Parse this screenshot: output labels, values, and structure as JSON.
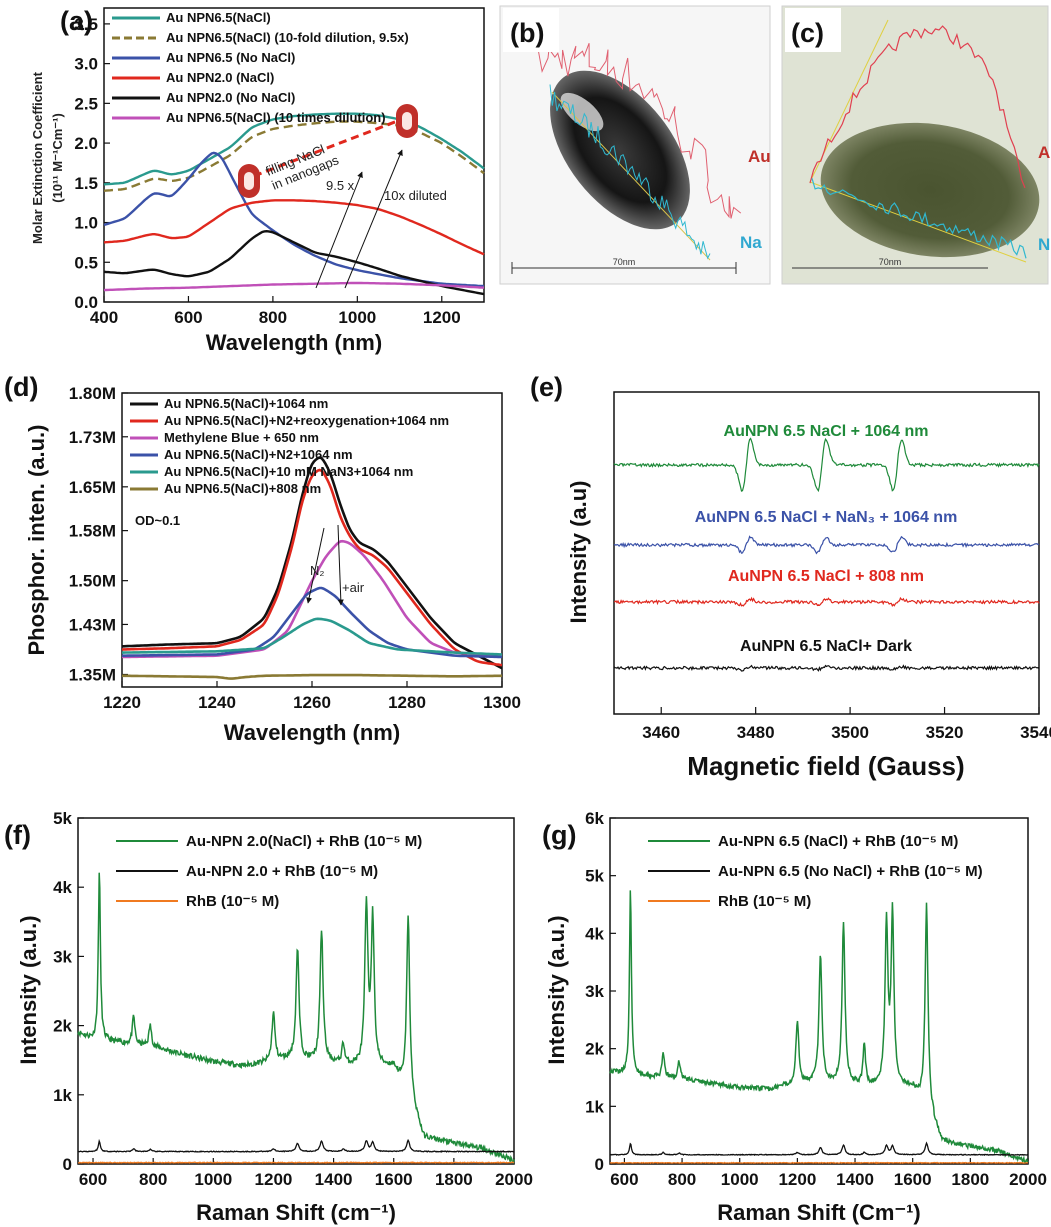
{
  "chart_data": [
    {
      "panel": "(a)",
      "type": "line",
      "xlabel": "Wavelength (nm)",
      "ylabel": "Molar Extinction Coefficient (10¹¹ M⁻¹Cm⁻¹)",
      "ylabel_line1": "Molar Extinction Coefficient",
      "ylabel_line2": "(10¹¹ M⁻¹Cm⁻¹)",
      "xlim": [
        400,
        1300
      ],
      "ylim": [
        0,
        3.7
      ],
      "xticks": [
        400,
        600,
        800,
        1000,
        1200
      ],
      "yticks": [
        0.0,
        0.5,
        1.0,
        1.5,
        2.0,
        2.5,
        3.0,
        3.5
      ],
      "ytick_labels": [
        "0.0",
        "0.5",
        "1.0",
        "1.5",
        "2.0",
        "2.5",
        "3.0",
        "3.5"
      ],
      "legend_position": "top-left",
      "annotations": [
        "filling NaCl",
        "in nanogaps",
        "9.5 x",
        "10x diluted"
      ],
      "series": [
        {
          "name": "Au NPN6.5(NaCl)",
          "color": "#2a9a8e",
          "dash": false,
          "x": [
            400,
            450,
            500,
            520,
            560,
            600,
            650,
            700,
            750,
            800,
            850,
            900,
            950,
            1000,
            1050,
            1100,
            1150,
            1200,
            1250,
            1300
          ],
          "y": [
            1.48,
            1.5,
            1.62,
            1.66,
            1.6,
            1.65,
            1.8,
            1.95,
            2.2,
            2.3,
            2.34,
            2.36,
            2.37,
            2.37,
            2.35,
            2.3,
            2.2,
            2.05,
            1.88,
            1.68
          ]
        },
        {
          "name": "Au NPN6.5(NaCl) (10-fold dilution, 9.5x)",
          "color": "#8a7a34",
          "dash": true,
          "x": [
            400,
            450,
            500,
            520,
            560,
            600,
            650,
            700,
            750,
            800,
            850,
            900,
            950,
            1000,
            1050,
            1100,
            1150,
            1200,
            1250,
            1300
          ],
          "y": [
            1.4,
            1.42,
            1.52,
            1.56,
            1.52,
            1.56,
            1.7,
            1.85,
            2.08,
            2.18,
            2.22,
            2.25,
            2.27,
            2.27,
            2.25,
            2.22,
            2.13,
            2.0,
            1.82,
            1.62
          ]
        },
        {
          "name": "Au NPN6.5 (No NaCl)",
          "color": "#3b52a8",
          "dash": false,
          "x": [
            400,
            450,
            500,
            520,
            560,
            600,
            630,
            660,
            680,
            700,
            750,
            800,
            850,
            900,
            950,
            1000,
            1100,
            1200,
            1300
          ],
          "y": [
            0.97,
            1.05,
            1.3,
            1.38,
            1.32,
            1.55,
            1.75,
            1.9,
            1.82,
            1.6,
            1.1,
            0.9,
            0.72,
            0.58,
            0.47,
            0.4,
            0.3,
            0.23,
            0.2
          ]
        },
        {
          "name": "Au NPN2.0 (NaCl)",
          "color": "#e0281e",
          "dash": false,
          "x": [
            400,
            450,
            500,
            520,
            560,
            600,
            650,
            700,
            750,
            800,
            850,
            900,
            950,
            1000,
            1050,
            1100,
            1150,
            1200,
            1250,
            1300
          ],
          "y": [
            0.75,
            0.77,
            0.84,
            0.86,
            0.8,
            0.82,
            1.0,
            1.18,
            1.25,
            1.28,
            1.28,
            1.27,
            1.25,
            1.22,
            1.17,
            1.08,
            0.97,
            0.85,
            0.72,
            0.6
          ]
        },
        {
          "name": "Au NPN2.0 (No NaCl)",
          "color": "#111111",
          "dash": false,
          "x": [
            400,
            450,
            500,
            520,
            560,
            600,
            650,
            700,
            750,
            780,
            800,
            850,
            900,
            950,
            1000,
            1050,
            1100,
            1200,
            1300
          ],
          "y": [
            0.38,
            0.36,
            0.4,
            0.41,
            0.35,
            0.32,
            0.38,
            0.55,
            0.8,
            0.9,
            0.88,
            0.75,
            0.62,
            0.57,
            0.5,
            0.42,
            0.33,
            0.2,
            0.1
          ]
        },
        {
          "name": "Au NPN6.5(NaCl) (10 times dilution)",
          "color": "#c050b8",
          "dash": false,
          "x": [
            400,
            500,
            600,
            700,
            800,
            900,
            1000,
            1100,
            1200,
            1300
          ],
          "y": [
            0.15,
            0.17,
            0.18,
            0.2,
            0.22,
            0.23,
            0.24,
            0.23,
            0.21,
            0.18
          ]
        }
      ]
    },
    {
      "panel": "(b)",
      "type": "image",
      "labels": [
        "Au",
        "Na"
      ],
      "scale_label": "70nm"
    },
    {
      "panel": "(c)",
      "type": "image",
      "labels": [
        "A",
        "N"
      ],
      "scale_label": "70nm"
    },
    {
      "panel": "(d)",
      "type": "line",
      "xlabel": "Wavelength (nm)",
      "ylabel": "Phosphor. inten. (a.u.)",
      "xlim": [
        1220,
        1300
      ],
      "ylim": [
        1.33,
        1.8
      ],
      "xticks": [
        1220,
        1240,
        1260,
        1280,
        1300
      ],
      "yticks": [
        1.35,
        1.43,
        1.5,
        1.58,
        1.65,
        1.73,
        1.8
      ],
      "ytick_labels": [
        "1.35M",
        "1.43M",
        "1.50M",
        "1.58M",
        "1.65M",
        "1.73M",
        "1.80M"
      ],
      "legend_position": "top-left",
      "annotations": [
        "OD~0.1",
        "N₂",
        "+air"
      ],
      "series": [
        {
          "name": "Au NPN6.5(NaCl)+1064 nm",
          "color": "#111111",
          "x": [
            1220,
            1230,
            1240,
            1245,
            1250,
            1253,
            1256,
            1258,
            1260,
            1262,
            1264,
            1266,
            1268,
            1270,
            1273,
            1276,
            1280,
            1285,
            1290,
            1295,
            1300
          ],
          "y": [
            1.395,
            1.398,
            1.4,
            1.41,
            1.44,
            1.49,
            1.57,
            1.64,
            1.69,
            1.7,
            1.67,
            1.62,
            1.58,
            1.56,
            1.55,
            1.53,
            1.49,
            1.44,
            1.4,
            1.38,
            1.36
          ]
        },
        {
          "name": "Au NPN6.5(NaCl)+N2+reoxygenation+1064 nm",
          "color": "#e0281e",
          "x": [
            1220,
            1230,
            1240,
            1245,
            1250,
            1253,
            1256,
            1258,
            1260,
            1262,
            1264,
            1266,
            1268,
            1270,
            1273,
            1276,
            1280,
            1285,
            1290,
            1295,
            1300
          ],
          "y": [
            1.39,
            1.392,
            1.395,
            1.405,
            1.43,
            1.48,
            1.56,
            1.63,
            1.67,
            1.68,
            1.65,
            1.6,
            1.57,
            1.55,
            1.54,
            1.52,
            1.48,
            1.43,
            1.39,
            1.37,
            1.365
          ]
        },
        {
          "name": "Methylene Blue + 650 nm",
          "color": "#c050b8",
          "x": [
            1220,
            1240,
            1250,
            1255,
            1260,
            1263,
            1266,
            1268,
            1271,
            1275,
            1280,
            1285,
            1290,
            1300
          ],
          "y": [
            1.378,
            1.38,
            1.39,
            1.42,
            1.5,
            1.54,
            1.565,
            1.56,
            1.54,
            1.5,
            1.44,
            1.4,
            1.385,
            1.38
          ]
        },
        {
          "name": "Au NPN6.5(NaCl)+N2+1064 nm",
          "color": "#3b52a8",
          "x": [
            1220,
            1240,
            1248,
            1252,
            1256,
            1259,
            1262,
            1265,
            1268,
            1272,
            1276,
            1280,
            1290,
            1300
          ],
          "y": [
            1.38,
            1.382,
            1.39,
            1.41,
            1.45,
            1.48,
            1.49,
            1.475,
            1.45,
            1.42,
            1.4,
            1.39,
            1.38,
            1.378
          ]
        },
        {
          "name": "Au NPN6.5(NaCl)+10 mM NaN3+1064 nm",
          "color": "#2a9a8e",
          "x": [
            1220,
            1240,
            1250,
            1254,
            1258,
            1261,
            1264,
            1268,
            1272,
            1278,
            1290,
            1300
          ],
          "y": [
            1.385,
            1.387,
            1.392,
            1.41,
            1.43,
            1.44,
            1.436,
            1.42,
            1.4,
            1.39,
            1.385,
            1.382
          ]
        },
        {
          "name": "Au NPN6.5(NaCl)+808 nm",
          "color": "#8a7a34",
          "x": [
            1220,
            1230,
            1240,
            1243,
            1246,
            1250,
            1260,
            1270,
            1280,
            1290,
            1300
          ],
          "y": [
            1.348,
            1.347,
            1.346,
            1.343,
            1.346,
            1.348,
            1.349,
            1.349,
            1.348,
            1.347,
            1.348
          ]
        }
      ]
    },
    {
      "panel": "(e)",
      "type": "line",
      "xlabel": "Magnetic field (Gauss)",
      "ylabel": "Intensity (a.u)",
      "xlim": [
        3450,
        3540
      ],
      "xticks": [
        3460,
        3480,
        3500,
        3520,
        3540
      ],
      "peak_fields": [
        3478,
        3494,
        3510
      ],
      "series": [
        {
          "name": "AuNPN 6.5 NaCl + 1064 nm",
          "color": "#1f8a3a",
          "baseline": 0.0,
          "amplitude": 1.0
        },
        {
          "name": "AuNPN 6.5 NaCl + NaN₃ + 1064 nm",
          "color": "#3b52a8",
          "baseline": -1.0,
          "amplitude": 0.3
        },
        {
          "name": "AuNPN 6.5 NaCl + 808 nm",
          "color": "#e0281e",
          "baseline": -1.7,
          "amplitude": 0.12
        },
        {
          "name": "AuNPN 6.5 NaCl+ Dark",
          "color": "#111111",
          "baseline": -2.7,
          "amplitude": 0.06
        }
      ]
    },
    {
      "panel": "(f)",
      "type": "line",
      "xlabel": "Raman Shift (cm⁻¹)",
      "ylabel": "Intensity (a.u.)",
      "xlim": [
        550,
        2000
      ],
      "ylim": [
        0,
        5000
      ],
      "xticks": [
        600,
        800,
        1000,
        1200,
        1400,
        1600,
        1800,
        2000
      ],
      "yticks": [
        0,
        1000,
        2000,
        3000,
        4000,
        5000
      ],
      "ytick_labels": [
        "0",
        "1k",
        "2k",
        "3k",
        "4k",
        "5k"
      ],
      "legend_position": "top",
      "peaks_cm1": [
        621,
        735,
        790,
        1200,
        1280,
        1360,
        1432,
        1509,
        1530,
        1648
      ],
      "series": [
        {
          "name": "Au-NPN 2.0(NaCl) + RhB (10⁻⁵ M)",
          "color": "#1f8a3a",
          "x": [
            550,
            600,
            700,
            800,
            900,
            1000,
            1100,
            1150,
            1250,
            1350,
            1450,
            1550,
            1600,
            1660,
            1700,
            1800,
            1900,
            2000
          ],
          "y": [
            1900,
            1800,
            1750,
            1700,
            1580,
            1480,
            1420,
            1450,
            1520,
            1480,
            1430,
            1400,
            1400,
            900,
            380,
            300,
            220,
            50
          ],
          "peak_heights": [
            2500,
            400,
            300,
            700,
            1600,
            1900,
            300,
            2300,
            2100,
            2600
          ]
        },
        {
          "name": "Au-NPN 2.0 + RhB (10⁻⁵ M)",
          "color": "#111111",
          "baseline": 180,
          "peak_heights": [
            150,
            40,
            30,
            40,
            120,
            150,
            40,
            150,
            130,
            160
          ]
        },
        {
          "name": "RhB (10⁻⁵ M)",
          "color": "#f07a20",
          "baseline": 20
        }
      ]
    },
    {
      "panel": "(g)",
      "type": "line",
      "xlabel": "Raman Shift (Cm⁻¹)",
      "ylabel": "Intensity (a.u.)",
      "xlim": [
        550,
        2000
      ],
      "ylim": [
        0,
        6000
      ],
      "xticks": [
        600,
        800,
        1000,
        1200,
        1400,
        1600,
        1800,
        2000
      ],
      "yticks": [
        0,
        1000,
        2000,
        3000,
        4000,
        5000,
        6000
      ],
      "ytick_labels": [
        "0",
        "1k",
        "2k",
        "3k",
        "4k",
        "5k",
        "6k"
      ],
      "legend_position": "top",
      "peaks_cm1": [
        621,
        735,
        790,
        1200,
        1280,
        1360,
        1432,
        1509,
        1530,
        1648
      ],
      "series": [
        {
          "name": "Au-NPN 6.5 (NaCl) + RhB (10⁻⁵ M)",
          "color": "#1f8a3a",
          "x": [
            550,
            600,
            700,
            800,
            900,
            1000,
            1100,
            1150,
            1250,
            1350,
            1450,
            1550,
            1600,
            1660,
            1700,
            1800,
            1900,
            2000
          ],
          "y": [
            1600,
            1580,
            1520,
            1480,
            1400,
            1320,
            1300,
            1350,
            1420,
            1400,
            1350,
            1320,
            1320,
            900,
            400,
            300,
            220,
            40
          ],
          "peak_heights": [
            3200,
            400,
            300,
            1100,
            2200,
            2800,
            700,
            2800,
            3000,
            3500
          ]
        },
        {
          "name": "Au-NPN 6.5 (No NaCl) + RhB (10⁻⁵ M)",
          "color": "#111111",
          "baseline": 160,
          "peak_heights": [
            200,
            40,
            30,
            40,
            130,
            170,
            40,
            160,
            150,
            200
          ]
        },
        {
          "name": "RhB (10⁻⁵ M)",
          "color": "#f07a20",
          "baseline": 20
        }
      ]
    }
  ]
}
